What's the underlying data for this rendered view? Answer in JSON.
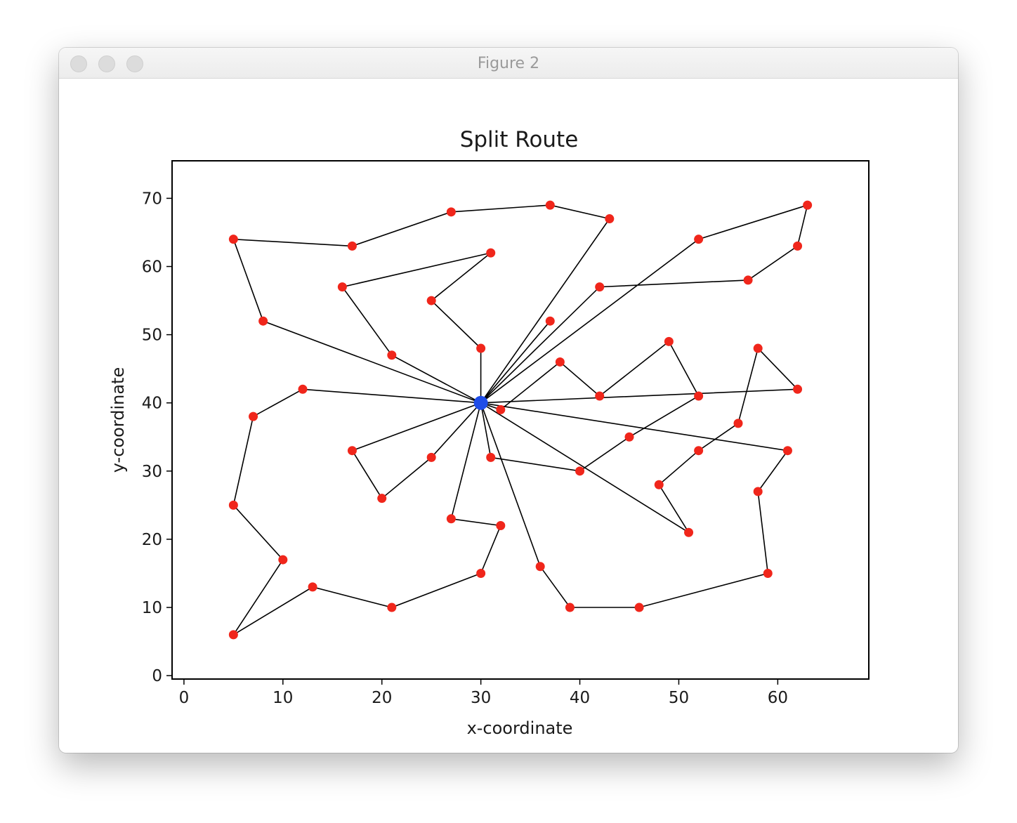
{
  "window": {
    "title": "Figure 2"
  },
  "chart_data": {
    "type": "scatter",
    "title": "Split Route",
    "xlabel": "x-coordinate",
    "ylabel": "y-coordinate",
    "xlim": [
      -1.2,
      69.2
    ],
    "ylim": [
      -0.5,
      75.5
    ],
    "xticks": [
      0,
      10,
      20,
      30,
      40,
      50,
      60
    ],
    "yticks": [
      0,
      10,
      20,
      30,
      40,
      50,
      60,
      70
    ],
    "grid": false,
    "depot": {
      "x": 30,
      "y": 40,
      "color": "#1f4de8"
    },
    "customer_color": "#f0261b",
    "line_color": "#000000",
    "routes": [
      [
        [
          30,
          40
        ],
        [
          30,
          48
        ],
        [
          25,
          55
        ],
        [
          31,
          62
        ],
        [
          16,
          57
        ],
        [
          21,
          47
        ],
        [
          30,
          40
        ]
      ],
      [
        [
          30,
          40
        ],
        [
          8,
          52
        ],
        [
          5,
          64
        ],
        [
          17,
          63
        ],
        [
          27,
          68
        ],
        [
          37,
          69
        ],
        [
          43,
          67
        ],
        [
          30,
          40
        ]
      ],
      [
        [
          30,
          40
        ],
        [
          42,
          57
        ],
        [
          57,
          58
        ],
        [
          62,
          63
        ],
        [
          63,
          69
        ],
        [
          52,
          64
        ],
        [
          30,
          40
        ]
      ],
      [
        [
          30,
          40
        ],
        [
          37,
          52
        ],
        [
          30,
          40
        ]
      ],
      [
        [
          30,
          40
        ],
        [
          32,
          39
        ],
        [
          38,
          46
        ],
        [
          42,
          41
        ],
        [
          49,
          49
        ],
        [
          52,
          41
        ],
        [
          45,
          35
        ],
        [
          40,
          30
        ],
        [
          31,
          32
        ],
        [
          30,
          40
        ]
      ],
      [
        [
          30,
          40
        ],
        [
          62,
          42
        ],
        [
          58,
          48
        ],
        [
          56,
          37
        ],
        [
          52,
          33
        ],
        [
          48,
          28
        ],
        [
          51,
          21
        ],
        [
          30,
          40
        ]
      ],
      [
        [
          30,
          40
        ],
        [
          61,
          33
        ],
        [
          58,
          27
        ],
        [
          59,
          15
        ],
        [
          46,
          10
        ],
        [
          39,
          10
        ],
        [
          36,
          16
        ],
        [
          30,
          40
        ]
      ],
      [
        [
          30,
          40
        ],
        [
          27,
          23
        ],
        [
          32,
          22
        ],
        [
          30,
          15
        ],
        [
          21,
          10
        ],
        [
          13,
          13
        ],
        [
          5,
          6
        ],
        [
          10,
          17
        ],
        [
          5,
          25
        ],
        [
          7,
          38
        ],
        [
          12,
          42
        ],
        [
          30,
          40
        ]
      ],
      [
        [
          30,
          40
        ],
        [
          17,
          33
        ],
        [
          20,
          26
        ],
        [
          25,
          32
        ],
        [
          30,
          40
        ]
      ]
    ]
  }
}
